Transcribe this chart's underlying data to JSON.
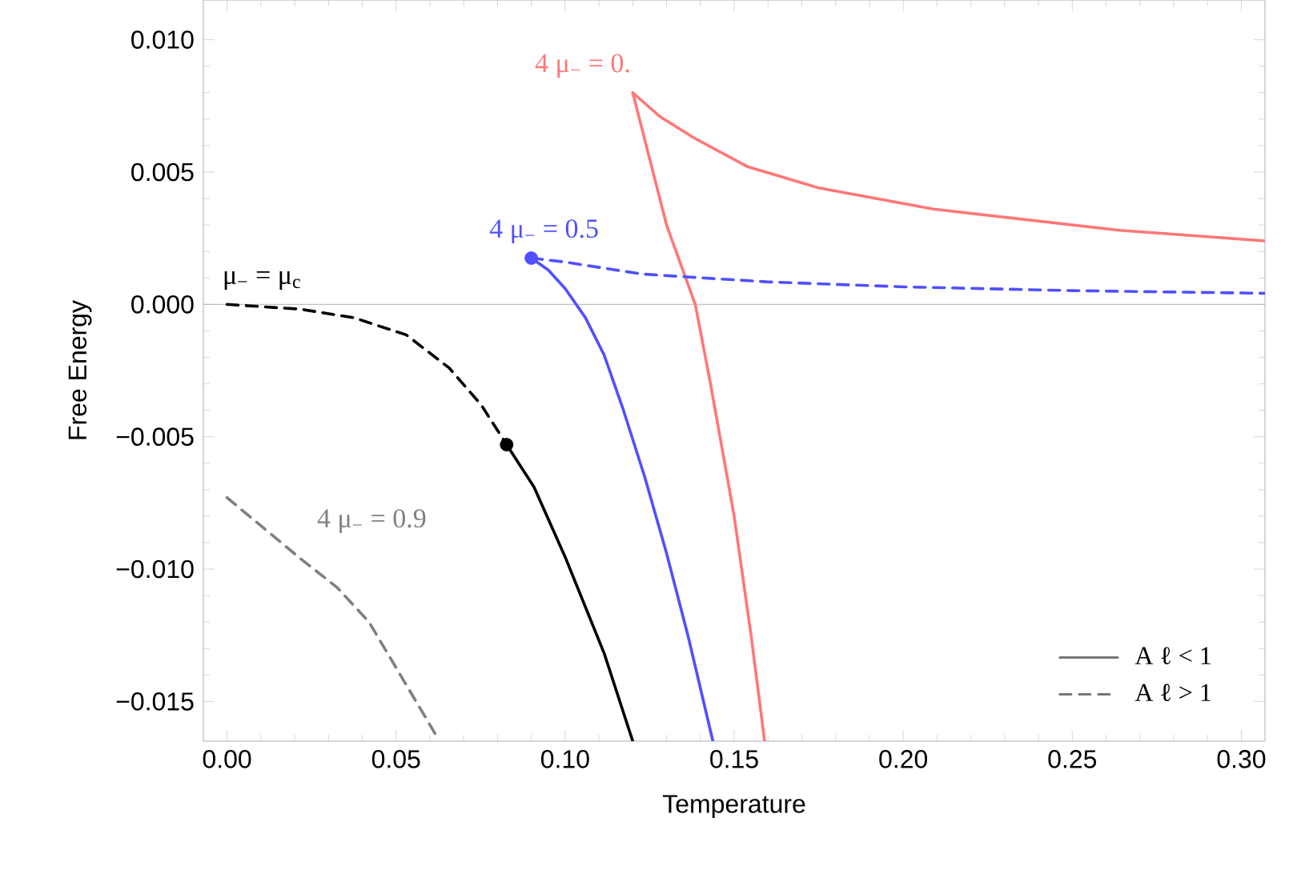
{
  "chart_data": {
    "type": "line",
    "xlabel": "Temperature",
    "ylabel": "Free Energy",
    "xlim": [
      -0.007,
      0.307
    ],
    "ylim": [
      -0.0165,
      0.0115
    ],
    "xticks": [
      {
        "value": 0,
        "label": "0.00"
      },
      {
        "value": 0.05,
        "label": "0.05"
      },
      {
        "value": 0.1,
        "label": "0.10"
      },
      {
        "value": 0.15,
        "label": "0.15"
      },
      {
        "value": 0.2,
        "label": "0.20"
      },
      {
        "value": 0.25,
        "label": "0.25"
      },
      {
        "value": 0.3,
        "label": "0.30"
      }
    ],
    "yticks": [
      {
        "value": -0.015,
        "label": "−0.015"
      },
      {
        "value": -0.01,
        "label": "−0.010"
      },
      {
        "value": -0.005,
        "label": "−0.005"
      },
      {
        "value": 0,
        "label": "0.000"
      },
      {
        "value": 0.005,
        "label": "0.005"
      },
      {
        "value": 0.01,
        "label": "0.010"
      }
    ],
    "ref_lines": [
      {
        "axis": "y",
        "value": 0,
        "color": "#b3b3b3"
      }
    ],
    "legend": "bottom right",
    "series": [
      {
        "name": "4 μ$_{−}$ = 0.",
        "color": "#ff7777",
        "line_style": "solid",
        "x": [
          0.307,
          0.264,
          0.209,
          0.175,
          0.154,
          0.138,
          0.128,
          0.12,
          0.125,
          0.13,
          0.1385,
          0.143,
          0.15,
          0.155,
          0.159
        ],
        "values": [
          0.0024,
          0.0028,
          0.0036,
          0.0044,
          0.0052,
          0.0063,
          0.0071,
          0.008,
          0.0055,
          0.003,
          0.0,
          -0.003,
          -0.008,
          -0.0125,
          -0.0165
        ]
      },
      {
        "name": "4 μ$_{−}$ = 0.5",
        "color": "#5050ff",
        "line_style": "dashed",
        "x": [
          0.09,
          0.1,
          0.1225,
          0.137,
          0.16,
          0.201,
          0.25,
          0.307
        ],
        "values": [
          0.00175,
          0.0016,
          0.00115,
          0.00103,
          0.00085,
          0.00066,
          0.00052,
          0.00042
        ]
      },
      {
        "color": "#5050ff",
        "line_style": "solid",
        "x": [
          0.09,
          0.095,
          0.1,
          0.106,
          0.1115,
          0.117,
          0.1235,
          0.13,
          0.1365,
          0.1437
        ],
        "values": [
          0.00175,
          0.0013,
          0.0006,
          -0.0005,
          -0.0019,
          -0.0039,
          -0.0065,
          -0.0094,
          -0.0126,
          -0.0165
        ]
      },
      {
        "name": "μ$_{−}$ = μ$_{c}$",
        "color": "#000000",
        "line_style": "dashed",
        "x": [
          0,
          0.0217,
          0.0374,
          0.053,
          0.0657,
          0.0752,
          0.0827
        ],
        "values": [
          0,
          -0.00018,
          -0.0005,
          -0.00115,
          -0.0024,
          -0.0038,
          -0.0053
        ]
      },
      {
        "color": "#000000",
        "line_style": "solid",
        "x": [
          0.0827,
          0.0908,
          0.1002,
          0.1116,
          0.12
        ],
        "values": [
          -0.0053,
          -0.0069,
          -0.0096,
          -0.0132,
          -0.0165
        ]
      },
      {
        "name": "4 μ$_{−}$ = 0.9",
        "color": "#808080",
        "line_style": "dashed",
        "x": [
          0,
          0.0217,
          0.0326,
          0.042,
          0.0624
        ],
        "values": [
          -0.0073,
          -0.0096,
          -0.0107,
          -0.012,
          -0.0164
        ]
      },
      {
        "type": "scatter",
        "marker": "circle",
        "color": "#5050ff",
        "x": [
          0.09
        ],
        "values": [
          0.00175
        ]
      },
      {
        "type": "scatter",
        "marker": "circle",
        "color": "#000000",
        "x": [
          0.0827
        ],
        "values": [
          -0.0053
        ]
      },
      {
        "name": "A ℓ < 1",
        "color": "#777777",
        "line_style": "solid"
      },
      {
        "name": "A ℓ > 1",
        "color": "#777777",
        "line_style": "dashed"
      }
    ]
  }
}
